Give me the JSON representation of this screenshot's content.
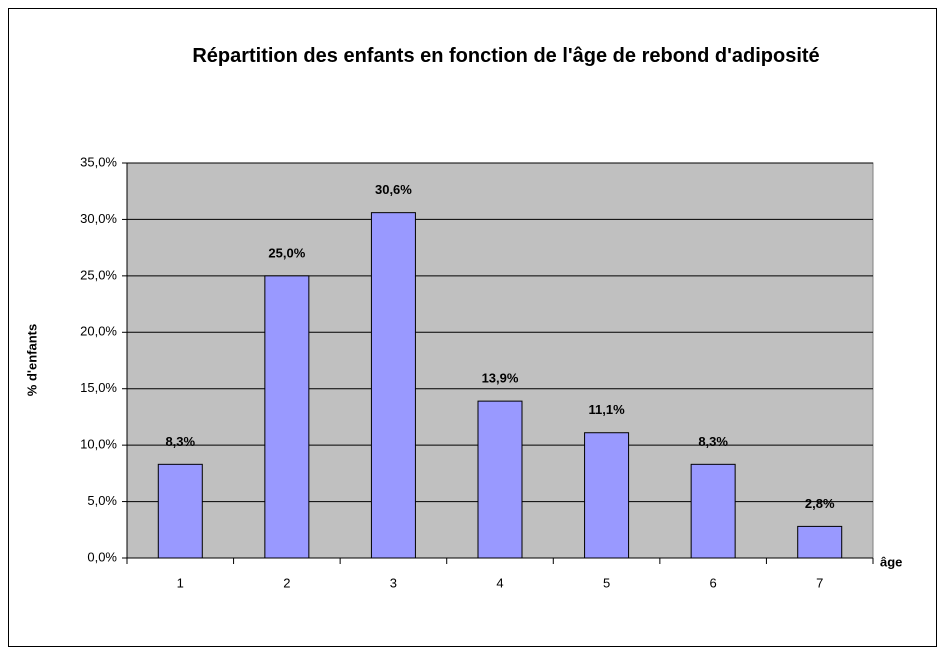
{
  "chart_data": {
    "type": "bar",
    "title": "Répartition des enfants en fonction de l'âge de rebond d'adiposité",
    "x_label": "âge",
    "y_label": "% d'enfants",
    "categories": [
      "1",
      "2",
      "3",
      "4",
      "5",
      "6",
      "7"
    ],
    "values": [
      8.3,
      25.0,
      30.6,
      13.9,
      11.1,
      8.3,
      2.8
    ],
    "value_labels": [
      "8,3%",
      "25,0%",
      "30,6%",
      "13,9%",
      "11,1%",
      "8,3%",
      "2,8%"
    ],
    "color": "#9999ff",
    "ylim": [
      0,
      35
    ],
    "yticks": [
      {
        "value": 0,
        "label": "0,0%"
      },
      {
        "value": 5,
        "label": "5,0%"
      },
      {
        "value": 10,
        "label": "10,0%"
      },
      {
        "value": 15,
        "label": "15,0%"
      },
      {
        "value": 20,
        "label": "20,0%"
      },
      {
        "value": 25,
        "label": "25,0%"
      },
      {
        "value": 30,
        "label": "30,0%"
      },
      {
        "value": 35,
        "label": "35,0%"
      }
    ],
    "grid": true,
    "plot_background": "#c0c0c0"
  }
}
